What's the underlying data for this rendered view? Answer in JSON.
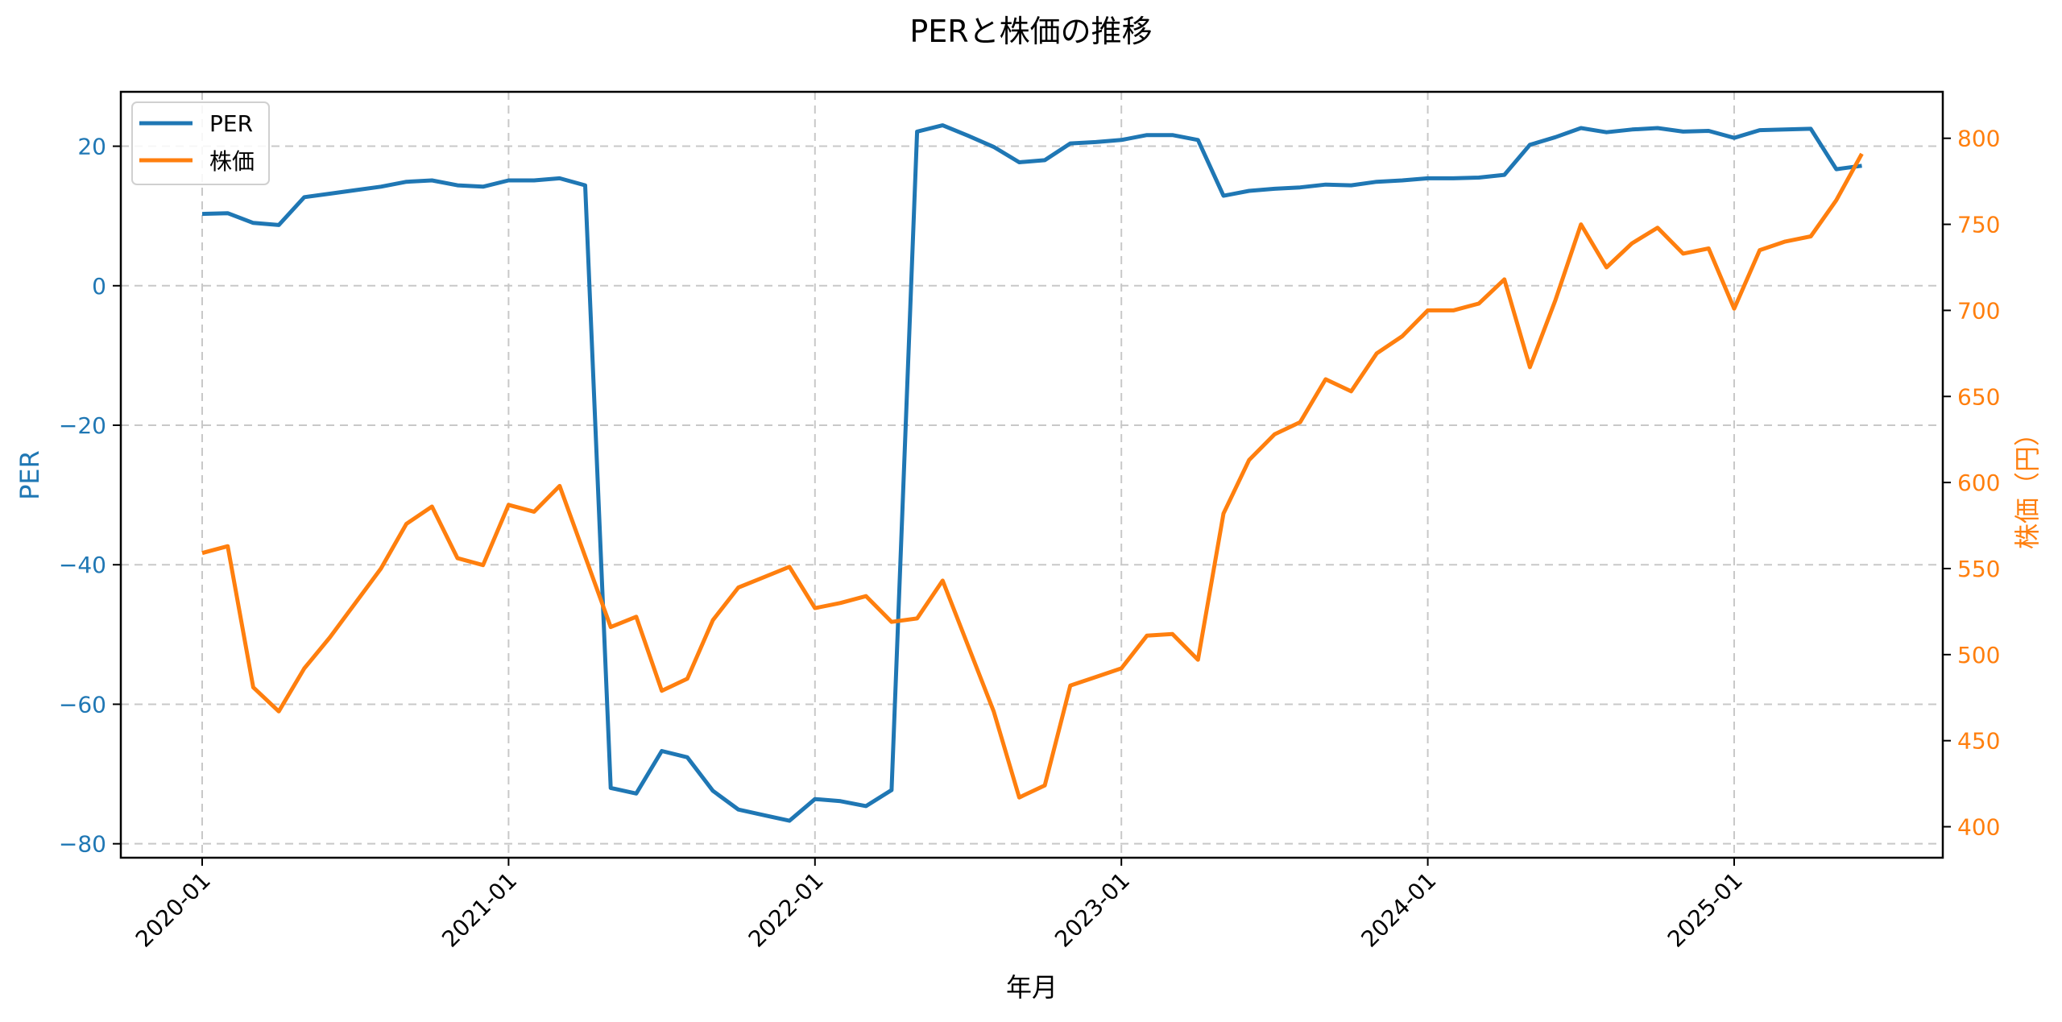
{
  "chart_data": {
    "type": "line",
    "title": "PERと株価の推移",
    "xlabel": "年月",
    "ylabel_left": "PER",
    "ylabel_right": "株価（円）",
    "x_ticks": [
      "2020-01",
      "2021-01",
      "2022-01",
      "2023-01",
      "2024-01",
      "2025-01"
    ],
    "y_left_ticks": [
      20,
      0,
      -20,
      -40,
      -60,
      -80
    ],
    "y_right_ticks": [
      800,
      750,
      700,
      650,
      600,
      550,
      500,
      450,
      400
    ],
    "ylim_left": [
      -82.0,
      27.8
    ],
    "ylim_right": [
      382,
      827
    ],
    "grid": true,
    "legend_position": "upper left",
    "x": [
      "2020-01",
      "2020-02",
      "2020-03",
      "2020-04",
      "2020-05",
      "2020-06",
      "2020-07",
      "2020-08",
      "2020-09",
      "2020-10",
      "2020-11",
      "2020-12",
      "2021-01",
      "2021-02",
      "2021-03",
      "2021-04",
      "2021-05",
      "2021-06",
      "2021-07",
      "2021-08",
      "2021-09",
      "2021-10",
      "2021-11",
      "2021-12",
      "2022-01",
      "2022-02",
      "2022-03",
      "2022-04",
      "2022-05",
      "2022-06",
      "2022-07",
      "2022-08",
      "2022-09",
      "2022-10",
      "2022-11",
      "2022-12",
      "2023-01",
      "2023-02",
      "2023-03",
      "2023-04",
      "2023-05",
      "2023-06",
      "2023-07",
      "2023-08",
      "2023-09",
      "2023-10",
      "2023-11",
      "2023-12",
      "2024-01",
      "2024-02",
      "2024-03",
      "2024-04",
      "2024-05",
      "2024-06",
      "2024-07",
      "2024-08",
      "2024-09",
      "2024-10",
      "2024-11",
      "2024-12",
      "2025-01",
      "2025-02",
      "2025-03",
      "2025-04",
      "2025-05",
      "2025-06"
    ],
    "series": [
      {
        "name": "PER",
        "axis": "left",
        "color": "#1f77b4",
        "values": [
          10.3,
          10.4,
          9.0,
          8.7,
          12.7,
          13.2,
          13.7,
          14.2,
          14.9,
          15.1,
          14.4,
          14.2,
          15.1,
          15.1,
          15.4,
          14.4,
          -72.0,
          -72.8,
          -66.7,
          -67.6,
          -72.4,
          -75.1,
          -75.9,
          -76.7,
          -73.6,
          -73.9,
          -74.6,
          -72.3,
          22.1,
          23.0,
          21.5,
          19.9,
          17.7,
          18.0,
          20.4,
          20.6,
          20.9,
          21.6,
          21.6,
          20.9,
          12.9,
          13.6,
          13.9,
          14.1,
          14.5,
          14.4,
          14.9,
          15.1,
          15.4,
          15.4,
          15.5,
          15.9,
          20.2,
          21.3,
          22.6,
          22.0,
          22.4,
          22.6,
          22.1,
          22.2,
          21.2,
          22.3,
          22.4,
          22.5,
          16.7,
          17.2
        ]
      },
      {
        "name": "株価",
        "axis": "right",
        "color": "#ff7f0e",
        "values": [
          559,
          563,
          481,
          467,
          492,
          510,
          530,
          550,
          576,
          586,
          556,
          552,
          587,
          583,
          598,
          557,
          516,
          522,
          479,
          486,
          520,
          539,
          545,
          551,
          527,
          530,
          534,
          519,
          521,
          543,
          505,
          467,
          417,
          424,
          482,
          487,
          492,
          511,
          512,
          497,
          582,
          613,
          628,
          635,
          660,
          653,
          675,
          685,
          700,
          700,
          704,
          718,
          667,
          706,
          750,
          725,
          739,
          748,
          733,
          736,
          701,
          735,
          740,
          743,
          764,
          791
        ]
      }
    ]
  },
  "legend": {
    "items": [
      {
        "label": "PER",
        "color": "#1f77b4"
      },
      {
        "label": "株価",
        "color": "#ff7f0e"
      }
    ]
  },
  "colors": {
    "left_axis": "#1f77b4",
    "right_axis": "#ff7f0e",
    "grid": "#c8c8c8"
  }
}
